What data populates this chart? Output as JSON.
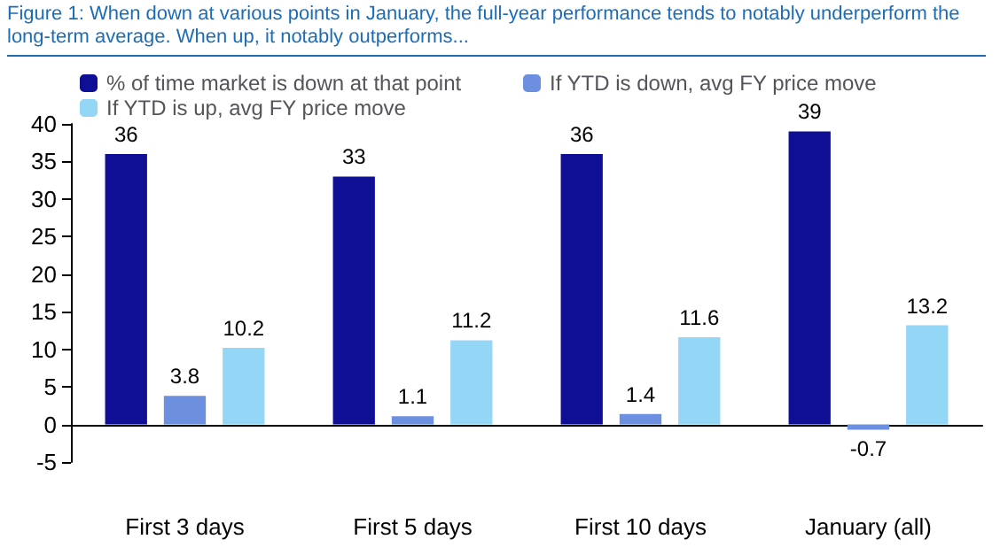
{
  "chart_data": {
    "type": "bar",
    "title": "Figure 1: When down at various points in January, the full-year performance tends to notably underperform the long-term average. When up, it notably outperforms...",
    "categories": [
      "First 3 days",
      "First 5 days",
      "First 10 days",
      "January (all)"
    ],
    "series": [
      {
        "name": "% of time market is down at that point",
        "color": "#0f0f96",
        "values": [
          36,
          33,
          36,
          39
        ]
      },
      {
        "name": "If YTD is down, avg FY price move",
        "color": "#6d8fe0",
        "values": [
          3.8,
          1.1,
          1.4,
          -0.7
        ]
      },
      {
        "name": "If YTD is up, avg FY price move",
        "color": "#94d6f6",
        "values": [
          10.2,
          11.2,
          11.6,
          13.2
        ]
      }
    ],
    "ylim": [
      -5,
      40
    ],
    "yticks": [
      -5,
      0,
      5,
      10,
      15,
      20,
      25,
      30,
      35,
      40
    ],
    "legend": "top left",
    "data_labels": true
  }
}
